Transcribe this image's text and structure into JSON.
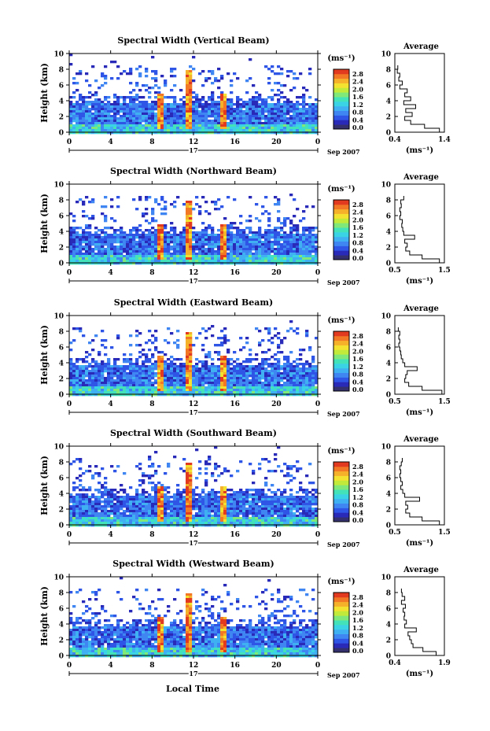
{
  "colors": {
    "scale": [
      "#34306e",
      "#2a2ab8",
      "#2f55e6",
      "#3f86f2",
      "#3fb1f2",
      "#3ad3e6",
      "#44e2b8",
      "#7fe879",
      "#c2ea3a",
      "#f3e22f",
      "#f6b12b",
      "#f27826",
      "#e23a1f"
    ]
  },
  "x_ticks": [
    "0",
    "4",
    "8",
    "12",
    "16",
    "20",
    "0"
  ],
  "day_label": "17",
  "date_label": "Sep 2007",
  "x_axis_label": "Local Time",
  "y_label": "Height (km)",
  "y_ticks": [
    "0",
    "2",
    "4",
    "6",
    "8",
    "10"
  ],
  "cbar_unit": "(ms⁻¹)",
  "cbar_ticks": [
    "0.0",
    "0.4",
    "0.8",
    "1.2",
    "1.6",
    "2.0",
    "2.4",
    "2.8"
  ],
  "avg_title": "Average",
  "avg_unit": "(ms⁻¹)",
  "panels": [
    {
      "title": "Spectral Width (Vertical Beam)",
      "avg_ticks": [
        "0.4",
        "1.4"
      ]
    },
    {
      "title": "Spectral Width (Northward Beam)",
      "avg_ticks": [
        "0.5",
        "1.5"
      ]
    },
    {
      "title": "Spectral Width (Eastward Beam)",
      "avg_ticks": [
        "0.5",
        "1.5"
      ]
    },
    {
      "title": "Spectral Width (Southward Beam)",
      "avg_ticks": [
        "0.5",
        "1.5"
      ]
    },
    {
      "title": "Spectral Width (Westward Beam)",
      "avg_ticks": [
        "0.4",
        "1.9"
      ]
    }
  ],
  "chart_data": [
    {
      "type": "heatmap",
      "title": "Spectral Width (Vertical Beam)",
      "xlabel": "",
      "ylabel": "Height (km)",
      "xlim": [
        0,
        24
      ],
      "ylim": [
        0,
        10
      ],
      "clim": [
        0.0,
        2.8
      ],
      "spikes_hours": [
        8.8,
        11.5,
        14.8
      ],
      "average_profile": {
        "xlim": [
          0.4,
          1.4
        ],
        "height_km": [
          0,
          0.5,
          1,
          1.5,
          2,
          2.5,
          3,
          3.5,
          4,
          4.5,
          5,
          5.5,
          6,
          6.5,
          7,
          7.5,
          8
        ],
        "width": [
          1.3,
          1.0,
          0.72,
          0.6,
          0.75,
          0.62,
          0.82,
          0.58,
          0.72,
          0.6,
          0.65,
          0.5,
          0.55,
          0.48,
          0.5,
          0.45,
          0.46
        ]
      }
    },
    {
      "type": "heatmap",
      "title": "Spectral Width (Northward Beam)",
      "xlabel": "",
      "ylabel": "Height (km)",
      "xlim": [
        0,
        24
      ],
      "ylim": [
        0,
        10
      ],
      "clim": [
        0.0,
        2.8
      ],
      "spikes_hours": [
        8.8,
        11.5,
        14.8
      ],
      "average_profile": {
        "xlim": [
          0.5,
          1.5
        ],
        "height_km": [
          0,
          0.5,
          1,
          1.5,
          2,
          2.5,
          3,
          3.5,
          4,
          4.5,
          5,
          5.5,
          6,
          6.5,
          7,
          7.5,
          8
        ],
        "width": [
          1.4,
          1.05,
          0.8,
          0.72,
          0.75,
          0.7,
          0.9,
          0.68,
          0.66,
          0.64,
          0.65,
          0.6,
          0.62,
          0.6,
          0.63,
          0.62,
          0.68
        ]
      }
    },
    {
      "type": "heatmap",
      "title": "Spectral Width (Eastward Beam)",
      "xlabel": "",
      "ylabel": "Height (km)",
      "xlim": [
        0,
        24
      ],
      "ylim": [
        0,
        10
      ],
      "clim": [
        0.0,
        2.8
      ],
      "spikes_hours": [
        8.8,
        11.5,
        14.8
      ],
      "average_profile": {
        "xlim": [
          0.5,
          1.5
        ],
        "height_km": [
          0,
          0.5,
          1,
          1.5,
          2,
          2.5,
          3,
          3.5,
          4,
          4.5,
          5,
          5.5,
          6,
          6.5,
          7,
          7.5,
          8
        ],
        "width": [
          1.45,
          1.05,
          0.78,
          0.7,
          0.72,
          0.75,
          0.95,
          0.7,
          0.66,
          0.63,
          0.62,
          0.6,
          0.58,
          0.6,
          0.58,
          0.6,
          0.57
        ]
      }
    },
    {
      "type": "heatmap",
      "title": "Spectral Width (Southward Beam)",
      "xlabel": "",
      "ylabel": "Height (km)",
      "xlim": [
        0,
        24
      ],
      "ylim": [
        0,
        10
      ],
      "clim": [
        0.0,
        2.8
      ],
      "spikes_hours": [
        8.8,
        11.5,
        14.8
      ],
      "average_profile": {
        "xlim": [
          0.5,
          1.5
        ],
        "height_km": [
          0,
          0.5,
          1,
          1.5,
          2,
          2.5,
          3,
          3.5,
          4,
          4.5,
          5,
          5.5,
          6,
          6.5,
          7,
          7.5,
          8
        ],
        "width": [
          1.4,
          1.05,
          0.8,
          0.72,
          0.76,
          0.72,
          1.0,
          0.7,
          0.66,
          0.62,
          0.65,
          0.62,
          0.6,
          0.62,
          0.6,
          0.63,
          0.65
        ]
      }
    },
    {
      "type": "heatmap",
      "title": "Spectral Width (Westward Beam)",
      "xlabel": "",
      "ylabel": "Height (km)",
      "xlim": [
        0,
        24
      ],
      "ylim": [
        0,
        10
      ],
      "clim": [
        0.0,
        2.8
      ],
      "spikes_hours": [
        8.8,
        11.5,
        14.8
      ],
      "average_profile": {
        "xlim": [
          0.4,
          1.9
        ],
        "height_km": [
          0,
          0.5,
          1,
          1.5,
          2,
          2.5,
          3,
          3.5,
          4,
          4.5,
          5,
          5.5,
          6,
          6.5,
          7,
          7.5,
          8
        ],
        "width": [
          1.65,
          1.25,
          0.95,
          0.9,
          0.85,
          0.8,
          1.05,
          0.7,
          0.75,
          0.68,
          0.7,
          0.65,
          0.72,
          0.6,
          0.7,
          0.62,
          0.6
        ]
      }
    }
  ]
}
